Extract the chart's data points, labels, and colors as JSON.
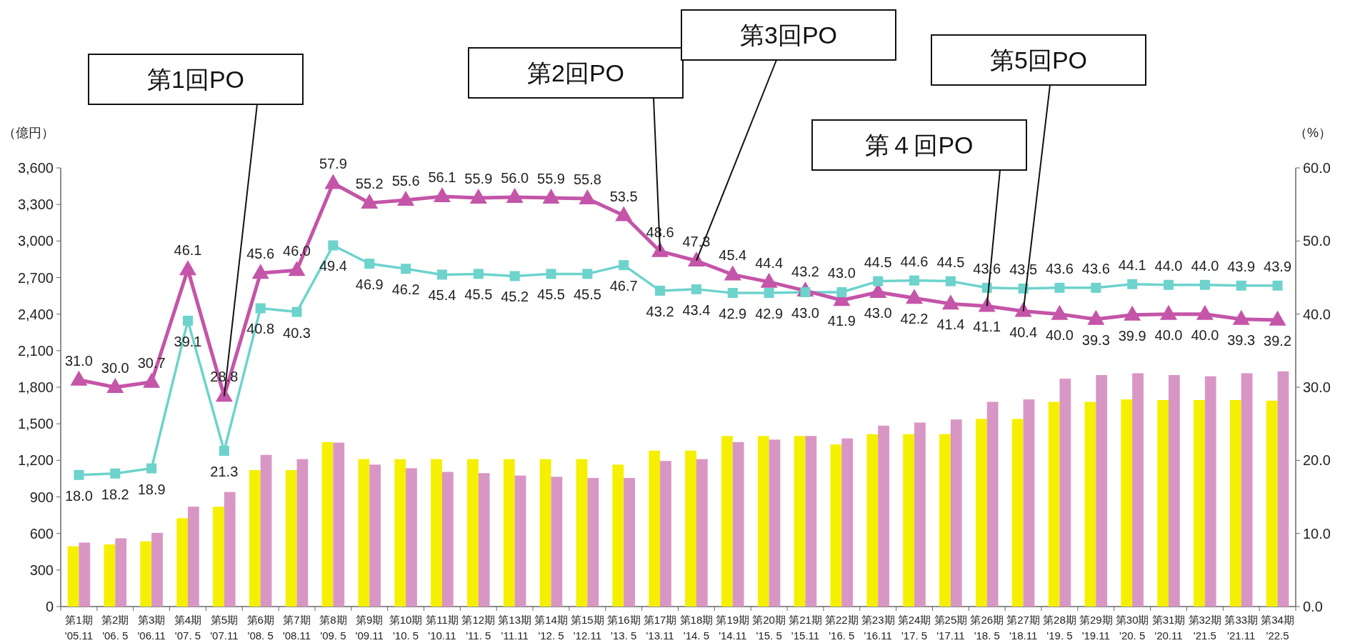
{
  "chart_data": {
    "type": "bar",
    "categories": [
      "第1期\n'05.11",
      "第2期\n'06. 5",
      "第3期\n'06.11",
      "第4期\n'07. 5",
      "第5期\n'07.11",
      "第6期\n'08. 5",
      "第7期\n'08.11",
      "第8期\n'09. 5",
      "第9期\n'09.11",
      "第10期\n'10. 5",
      "第11期\n'10.11",
      "第12期\n'11. 5",
      "第13期\n'11.11",
      "第14期\n'12. 5",
      "第15期\n'12.11",
      "第16期\n'13. 5",
      "第17期\n'13.11",
      "第18期\n'14. 5",
      "第19期\n'14.11",
      "第20期\n'15. 5",
      "第21期\n'15.11",
      "第22期\n'16. 5",
      "第23期\n'16.11",
      "第24期\n'17. 5",
      "第25期\n'17.11",
      "第26期\n'18. 5",
      "第27期\n'18.11",
      "第28期\n'19. 5",
      "第29期\n'19.11",
      "第30期\n'20. 5",
      "第31期\n'20.11",
      "第32期\n'21.5",
      "第33期\n'21.11",
      "第34期\n'22.5"
    ],
    "series": [
      {
        "color": "#f5ef00",
        "values": [
          495,
          510,
          535,
          725,
          820,
          1120,
          1120,
          1350,
          1210,
          1210,
          1210,
          1210,
          1210,
          1210,
          1210,
          1165,
          1280,
          1280,
          1400,
          1400,
          1400,
          1330,
          1415,
          1415,
          1415,
          1540,
          1540,
          1680,
          1680,
          1700,
          1695,
          1695,
          1695,
          1690
        ]
      },
      {
        "color": "#d896c5",
        "values": [
          525,
          560,
          605,
          820,
          940,
          1245,
          1210,
          1345,
          1165,
          1135,
          1105,
          1095,
          1075,
          1065,
          1055,
          1055,
          1195,
          1210,
          1350,
          1370,
          1400,
          1380,
          1485,
          1510,
          1535,
          1680,
          1700,
          1870,
          1900,
          1915,
          1900,
          1890,
          1915,
          1930
        ]
      },
      {
        "type": "line",
        "axis": "y2",
        "color": "#6dd3cc",
        "marker": "square",
        "values": [
          18.0,
          18.2,
          18.9,
          39.1,
          21.3,
          40.8,
          40.3,
          49.4,
          46.9,
          46.2,
          45.4,
          45.5,
          45.2,
          45.5,
          45.5,
          46.7,
          43.2,
          43.4,
          42.9,
          42.9,
          43.0,
          43.0,
          44.5,
          44.6,
          44.5,
          43.6,
          43.5,
          43.6,
          43.6,
          44.1,
          44.0,
          44.0,
          43.9,
          43.9
        ],
        "value_labels": [
          "18.0",
          "18.2",
          "18.9",
          "39.1",
          "21.3",
          "40.8",
          "40.3",
          "49.4",
          "46.9",
          "46.2",
          "45.4",
          "45.5",
          "45.2",
          "45.5",
          "45.5",
          "46.7",
          "43.2",
          "43.4",
          "42.9",
          "42.9",
          "43.0",
          "43.0",
          "44.5",
          "44.6",
          "44.5",
          "43.6",
          "43.5",
          "43.6",
          "43.6",
          "44.1",
          "44.0",
          "44.0",
          "43.9",
          "43.9"
        ]
      },
      {
        "type": "line",
        "axis": "y2",
        "color": "#c455a8",
        "marker": "triangle",
        "values": [
          31.0,
          30.0,
          30.7,
          46.1,
          28.8,
          45.6,
          46.0,
          57.9,
          55.2,
          55.6,
          56.1,
          55.9,
          56.0,
          55.9,
          55.8,
          53.5,
          48.6,
          47.3,
          45.4,
          44.4,
          43.2,
          41.9,
          43.0,
          42.2,
          41.4,
          41.1,
          40.4,
          40.0,
          39.3,
          39.9,
          40.0,
          40.0,
          39.3,
          39.2
        ],
        "value_labels": [
          "31.0",
          "30.0",
          "30.7",
          "46.1",
          "28.8",
          "45.6",
          "46.0",
          "57.9",
          "55.2",
          "55.6",
          "56.1",
          "55.9",
          "56.0",
          "55.9",
          "55.8",
          "53.5",
          "48.6",
          "47.3",
          "45.4",
          "44.4",
          "43.2",
          "41.9",
          "43.0",
          "42.2",
          "41.4",
          "41.1",
          "40.4",
          "40.0",
          "39.3",
          "39.9",
          "40.0",
          "40.0",
          "39.3",
          "39.2"
        ]
      }
    ],
    "ylabel": "（億円）",
    "y2label": "（%）",
    "ylim": [
      0,
      3600
    ],
    "yticks": [
      0,
      300,
      600,
      900,
      {
        "value": 1200,
        "label": "1,200"
      },
      {
        "value": 1500,
        "label": "1,500"
      },
      {
        "value": 1800,
        "label": "1,800"
      },
      {
        "value": 2100,
        "label": "2,100"
      },
      {
        "value": 2400,
        "label": "2,400"
      },
      {
        "value": 2700,
        "label": "2,700"
      },
      {
        "value": 3000,
        "label": "3,000"
      },
      {
        "value": 3300,
        "label": "3,300"
      },
      {
        "value": 3600,
        "label": "3,600"
      }
    ],
    "y2lim": [
      0,
      60
    ],
    "y2ticks": [
      {
        "value": 0,
        "label": "0.0"
      },
      {
        "value": 10,
        "label": "10.0"
      },
      {
        "value": 20,
        "label": "20.0"
      },
      {
        "value": 30,
        "label": "30.0"
      },
      {
        "value": 40,
        "label": "40.0"
      },
      {
        "value": 50,
        "label": "50.0"
      },
      {
        "value": 60,
        "label": "60.0"
      }
    ],
    "annotations": [
      {
        "text": "第1回PO",
        "x": "第5期\n'07.11",
        "y": 1728
      },
      {
        "text": "第2回PO",
        "x": "第17期\n'13.11",
        "y": 2916
      },
      {
        "text": "第3回PO",
        "x": "第18期\n'14. 5",
        "y": 2838
      },
      {
        "text": "第４回PO",
        "x": "第26期\n'18. 5",
        "y": 2466
      },
      {
        "text": "第5回PO",
        "x": "第27期\n'18.11",
        "y": 2424
      }
    ]
  }
}
